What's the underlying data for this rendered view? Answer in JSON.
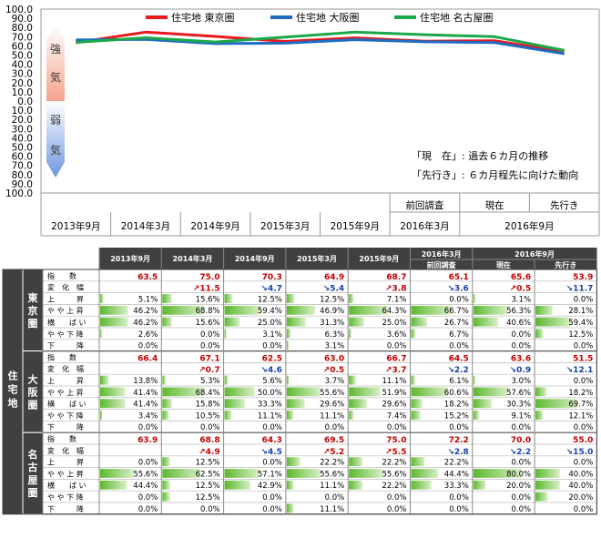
{
  "chart_data": {
    "type": "line",
    "ylim": [
      -100,
      100
    ],
    "y_ticks": [
      "100.0",
      "90.0",
      "80.0",
      "70.0",
      "60.0",
      "50.0",
      "40.0",
      "30.0",
      "20.0",
      "10.0",
      "0.0",
      "10.0",
      "20.0",
      "30.0",
      "40.0",
      "50.0",
      "60.0",
      "70.0",
      "80.0",
      "90.0",
      "100.0"
    ],
    "x_columns_row1": [
      "",
      "",
      "",
      "",
      "",
      "前回調査",
      "現在",
      "先行き"
    ],
    "x_columns_row2": [
      "2013年9月",
      "2014年3月",
      "2014年9月",
      "2015年3月",
      "2015年9月",
      "2016年3月",
      "2016年9月"
    ],
    "series": [
      {
        "name": "住宅地 東京圏",
        "color": "#e8191f",
        "values": [
          63.5,
          75.0,
          70.3,
          64.9,
          68.7,
          65.1,
          65.6,
          53.9
        ]
      },
      {
        "name": "住宅地 大阪圏",
        "color": "#1e6cc0",
        "values": [
          66.4,
          67.1,
          62.5,
          63.0,
          66.7,
          64.5,
          63.6,
          51.5
        ]
      },
      {
        "name": "住宅地 名古屋圏",
        "color": "#1ba84a",
        "values": [
          63.9,
          68.8,
          64.3,
          69.5,
          75.0,
          72.2,
          70.0,
          55.0
        ]
      }
    ],
    "sentiment_labels": [
      "強",
      "気",
      "弱",
      "気"
    ],
    "notes": [
      "「現　在」: 過去６カ月の推移",
      "「先行き」: ６カ月程先に向けた動向"
    ],
    "grid": false,
    "legend_position": "top"
  },
  "table": {
    "side_header": "住宅地",
    "header_row1": [
      "2013年9月",
      "2014年3月",
      "2014年9月",
      "2015年3月",
      "2015年9月",
      "2016年3月",
      "2016年9月"
    ],
    "header_row2": [
      "",
      "",
      "",
      "",
      "",
      "前回調査",
      "現在",
      "先行き"
    ],
    "row_labels": [
      "指　　数",
      "変　化　幅",
      "上　　　昇",
      "や や 上 昇",
      "横　　ば い",
      "や や 下 降",
      "下　　　降"
    ],
    "regions": [
      {
        "name": "東京圏",
        "index": [
          "63.5",
          "75.0",
          "70.3",
          "64.9",
          "68.7",
          "65.1",
          "65.6",
          "53.9"
        ],
        "change": [
          null,
          {
            "dir": "up",
            "v": "11.5"
          },
          {
            "dir": "down",
            "v": "4.7"
          },
          {
            "dir": "down",
            "v": "5.4"
          },
          {
            "dir": "up",
            "v": "3.8"
          },
          {
            "dir": "down",
            "v": "3.6"
          },
          {
            "dir": "up",
            "v": "0.5"
          },
          {
            "dir": "down",
            "v": "11.7"
          }
        ],
        "rows": [
          [
            5.1,
            15.6,
            12.5,
            12.5,
            7.1,
            0.0,
            3.1,
            0.0
          ],
          [
            46.2,
            68.8,
            59.4,
            46.9,
            64.3,
            66.7,
            56.3,
            28.1
          ],
          [
            46.2,
            15.6,
            25.0,
            31.3,
            25.0,
            26.7,
            40.6,
            59.4
          ],
          [
            2.6,
            0.0,
            3.1,
            6.3,
            3.6,
            6.7,
            0.0,
            12.5
          ],
          [
            0.0,
            0.0,
            0.0,
            3.1,
            0.0,
            0.0,
            0.0,
            0.0
          ]
        ]
      },
      {
        "name": "大阪圏",
        "index": [
          "66.4",
          "67.1",
          "62.5",
          "63.0",
          "66.7",
          "64.5",
          "63.6",
          "51.5"
        ],
        "change": [
          null,
          {
            "dir": "up",
            "v": "0.7"
          },
          {
            "dir": "down",
            "v": "4.6"
          },
          {
            "dir": "up",
            "v": "0.5"
          },
          {
            "dir": "up",
            "v": "3.7"
          },
          {
            "dir": "down",
            "v": "2.2"
          },
          {
            "dir": "down",
            "v": "0.9"
          },
          {
            "dir": "down",
            "v": "12.1"
          }
        ],
        "rows": [
          [
            13.8,
            5.3,
            5.6,
            3.7,
            11.1,
            6.1,
            3.0,
            0.0
          ],
          [
            41.4,
            68.4,
            50.0,
            55.6,
            51.9,
            60.6,
            57.6,
            18.2
          ],
          [
            41.4,
            15.8,
            33.3,
            29.6,
            29.6,
            18.2,
            30.3,
            69.7
          ],
          [
            3.4,
            10.5,
            11.1,
            11.1,
            7.4,
            15.2,
            9.1,
            12.1
          ],
          [
            0.0,
            0.0,
            0.0,
            0.0,
            0.0,
            0.0,
            0.0,
            0.0
          ]
        ]
      },
      {
        "name": "名古屋圏",
        "index": [
          "63.9",
          "68.8",
          "64.3",
          "69.5",
          "75.0",
          "72.2",
          "70.0",
          "55.0"
        ],
        "change": [
          null,
          {
            "dir": "up",
            "v": "4.9"
          },
          {
            "dir": "down",
            "v": "4.5"
          },
          {
            "dir": "up",
            "v": "5.2"
          },
          {
            "dir": "up",
            "v": "5.5"
          },
          {
            "dir": "down",
            "v": "2.8"
          },
          {
            "dir": "down",
            "v": "2.2"
          },
          {
            "dir": "down",
            "v": "15.0"
          }
        ],
        "rows": [
          [
            0.0,
            12.5,
            0.0,
            22.2,
            22.2,
            22.2,
            0.0,
            0.0
          ],
          [
            55.6,
            62.5,
            57.1,
            55.6,
            55.6,
            44.4,
            80.0,
            40.0
          ],
          [
            44.4,
            12.5,
            42.9,
            11.1,
            22.2,
            33.3,
            20.0,
            40.0
          ],
          [
            0.0,
            12.5,
            0.0,
            0.0,
            0.0,
            0.0,
            0.0,
            20.0
          ],
          [
            0.0,
            0.0,
            0.0,
            11.1,
            0.0,
            0.0,
            0.0,
            0.0
          ]
        ]
      }
    ]
  }
}
